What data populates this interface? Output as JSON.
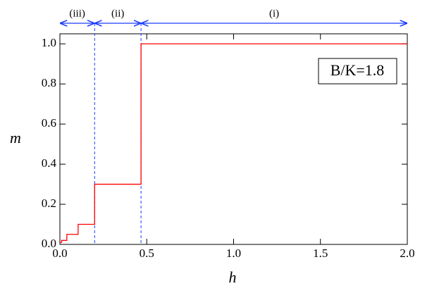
{
  "chart_data": {
    "type": "line",
    "x_label": "h",
    "y_label": "m",
    "annotation": "B/K=1.8",
    "x": [
      0,
      0.01,
      0.01,
      0.04,
      0.04,
      0.105,
      0.105,
      0.2,
      0.2,
      0.467,
      0.467,
      2.0
    ],
    "series": [
      {
        "color": "#ff0000",
        "values": [
          0.01,
          0.01,
          0.02,
          0.02,
          0.05,
          0.05,
          0.1,
          0.1,
          0.3,
          0.3,
          1.0,
          1.0
        ]
      }
    ],
    "regions": [
      {
        "label": "(iii)",
        "from": 0,
        "to": 0.2
      },
      {
        "label": "(ii)",
        "from": 0.2,
        "to": 0.467
      },
      {
        "label": "(i)",
        "from": 0.467,
        "to": 2.0
      }
    ],
    "region_color": "#1a3cff",
    "xlim": [
      0,
      2.0
    ],
    "ylim": [
      0,
      1.05
    ],
    "xticks": [
      {
        "value": 0,
        "label": "0.0"
      },
      {
        "value": 0.5,
        "label": "0.5"
      },
      {
        "value": 1,
        "label": "1.0"
      },
      {
        "value": 1.5,
        "label": "1.5"
      },
      {
        "value": 2,
        "label": "2.0"
      }
    ],
    "yticks": [
      {
        "value": 0,
        "label": "0.0"
      },
      {
        "value": 0.2,
        "label": "0.2"
      },
      {
        "value": 0.4,
        "label": "0.4"
      },
      {
        "value": 0.6,
        "label": "0.6"
      },
      {
        "value": 0.8,
        "label": "0.8"
      },
      {
        "value": 1,
        "label": "1.0"
      }
    ]
  }
}
